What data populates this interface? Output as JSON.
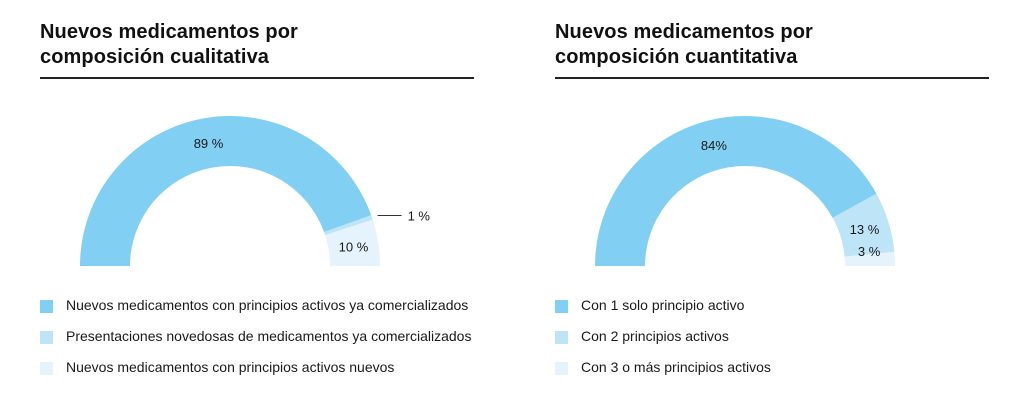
{
  "chart_data": [
    {
      "type": "pie",
      "variant": "semi-donut",
      "title": "Nuevos medicamentos por composición cualitativa",
      "title_lines": [
        "Nuevos medicamentos por",
        "composición cualitativa"
      ],
      "series": [
        {
          "name": "Nuevos medicamentos con principios activos ya comercializados",
          "value": 89,
          "label": "89 %",
          "color": "#82CFF4"
        },
        {
          "name": "Presentaciones novedosas de medicamentos ya comercializados",
          "value": 1,
          "label": "1 %",
          "color": "#BEE4F8",
          "label_outside": true
        },
        {
          "name": "Nuevos medicamentos con principios activos nuevos",
          "value": 10,
          "label": "10 %",
          "color": "#E4F3FC"
        }
      ],
      "legend_position": "bottom"
    },
    {
      "type": "pie",
      "variant": "semi-donut",
      "title": "Nuevos medicamentos por composición cuantitativa",
      "title_lines": [
        "Nuevos medicamentos por",
        "composición cuantitativa"
      ],
      "series": [
        {
          "name": "Con 1 solo principio activo",
          "value": 84,
          "label": "84%",
          "color": "#82CFF4"
        },
        {
          "name": "Con 2 principios activos",
          "value": 13,
          "label": "13 %",
          "color": "#BEE4F8"
        },
        {
          "name": "Con 3 o más principios activos",
          "value": 3,
          "label": "3 %",
          "color": "#E4F3FC"
        }
      ],
      "legend_position": "bottom"
    }
  ]
}
